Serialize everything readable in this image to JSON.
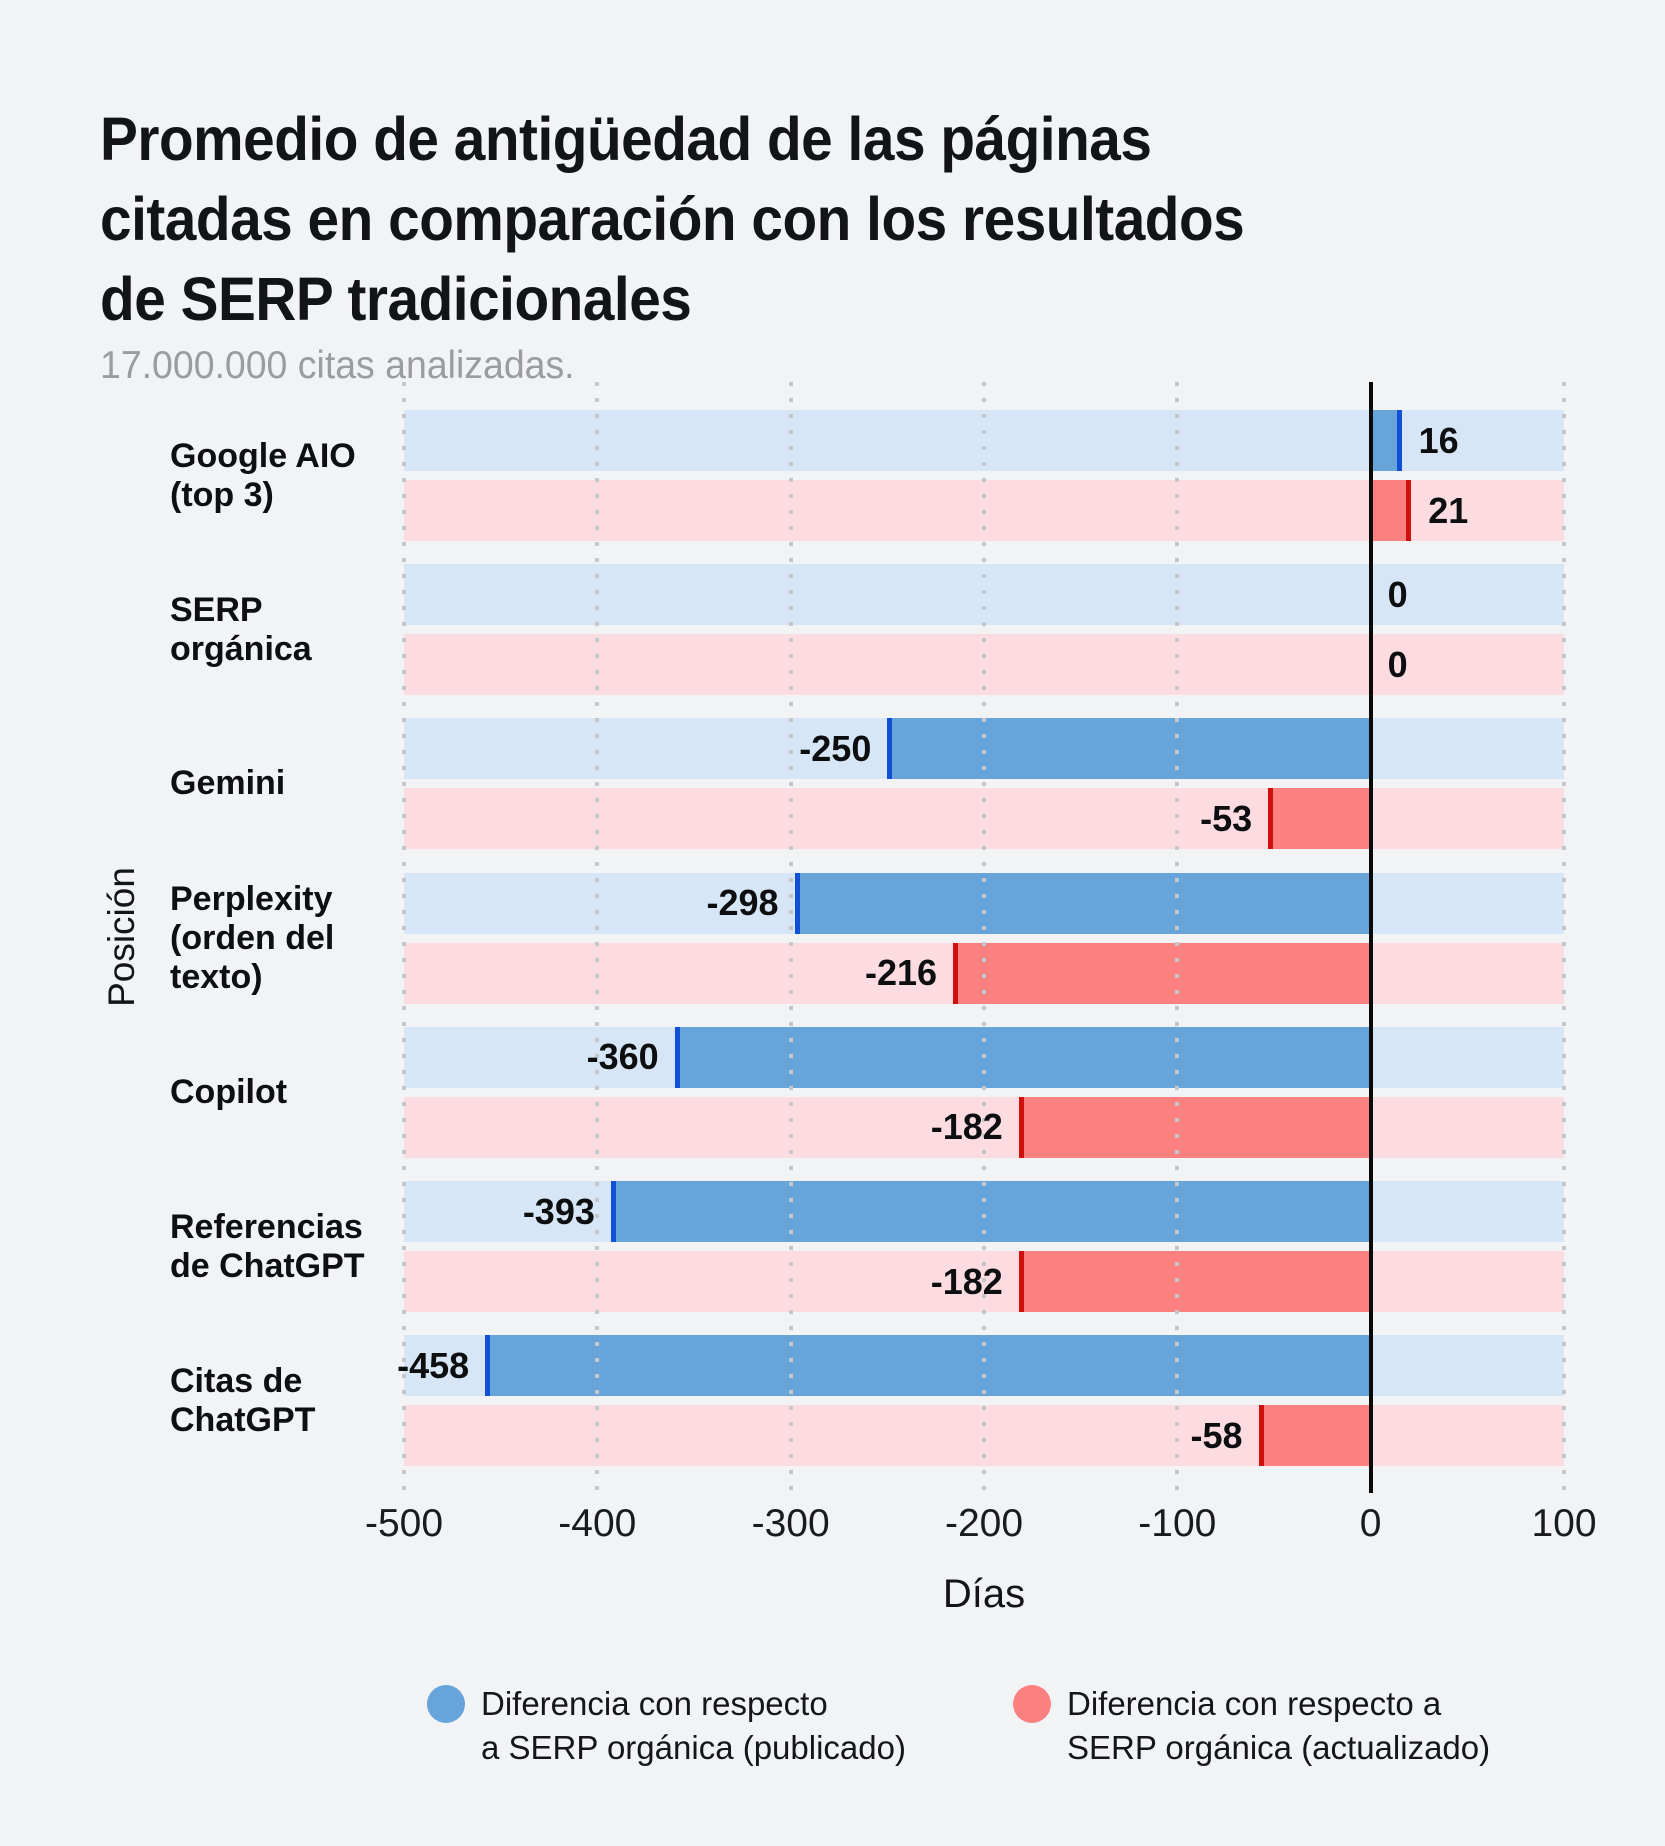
{
  "header": {
    "title": "Promedio de antigüedad de las páginas\ncitadas en comparación con los resultados\nde SERP tradicionales",
    "subtitle": "17.000.000 citas analizadas."
  },
  "chart_data": {
    "type": "bar",
    "orientation": "horizontal-diverging",
    "title": "Promedio de antigüedad de las páginas citadas en comparación con los resultados de SERP tradicionales",
    "subtitle": "17.000.000 citas analizadas.",
    "xlabel": "Días",
    "ylabel": "Posición",
    "xlim": [
      -500,
      100
    ],
    "xticks": [
      -500,
      -400,
      -300,
      -200,
      -100,
      0,
      100
    ],
    "grid": "vertical-dotted",
    "legend_position": "bottom",
    "zero_line_color": "#0a0a0a",
    "categories": [
      "Google AIO\n(top 3)",
      "SERP orgánica",
      "Gemini",
      "Perplexity\n(orden del\ntexto)",
      "Copilot",
      "Referencias\nde ChatGPT",
      "Citas de\nChatGPT"
    ],
    "series": [
      {
        "name": "Diferencia con respecto\na SERP orgánica (publicado)",
        "color": "#66a4da",
        "edge_color": "#1150d4",
        "track_color": "#d7e6f7",
        "values": [
          16,
          0,
          -250,
          -298,
          -360,
          -393,
          -458
        ]
      },
      {
        "name": "Diferencia con respecto a\nSERP orgánica (actualizado)",
        "color": "#fb8080",
        "edge_color": "#cf100e",
        "track_color": "#fcdce1",
        "values": [
          21,
          0,
          -53,
          -216,
          -182,
          -182,
          -58
        ]
      }
    ]
  },
  "colors": {
    "background": "#f2f3f5",
    "grid_dot": "#c5c7ca",
    "title_text": "#131416",
    "subtitle_text": "#9a9ca1"
  }
}
